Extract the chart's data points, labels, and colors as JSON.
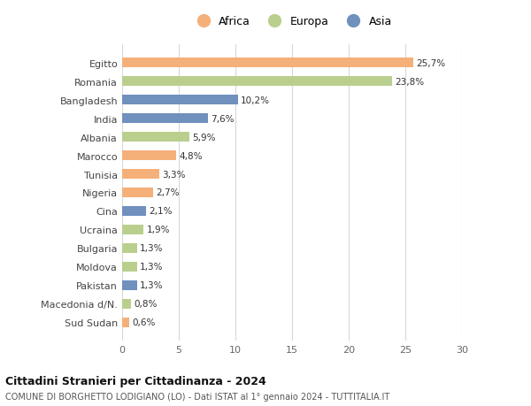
{
  "countries": [
    "Egitto",
    "Romania",
    "Bangladesh",
    "India",
    "Albania",
    "Marocco",
    "Tunisia",
    "Nigeria",
    "Cina",
    "Ucraina",
    "Bulgaria",
    "Moldova",
    "Pakistan",
    "Macedonia d/N.",
    "Sud Sudan"
  ],
  "values": [
    25.7,
    23.8,
    10.2,
    7.6,
    5.9,
    4.8,
    3.3,
    2.7,
    2.1,
    1.9,
    1.3,
    1.3,
    1.3,
    0.8,
    0.6
  ],
  "labels": [
    "25,7%",
    "23,8%",
    "10,2%",
    "7,6%",
    "5,9%",
    "4,8%",
    "3,3%",
    "2,7%",
    "2,1%",
    "1,9%",
    "1,3%",
    "1,3%",
    "1,3%",
    "0,8%",
    "0,6%"
  ],
  "continents": [
    "Africa",
    "Europa",
    "Asia",
    "Asia",
    "Europa",
    "Africa",
    "Africa",
    "Africa",
    "Asia",
    "Europa",
    "Europa",
    "Europa",
    "Asia",
    "Europa",
    "Africa"
  ],
  "colors": {
    "Africa": "#F5B07A",
    "Europa": "#BACF8E",
    "Asia": "#7090BE"
  },
  "xlim": [
    0,
    30
  ],
  "xticks": [
    0,
    5,
    10,
    15,
    20,
    25,
    30
  ],
  "title1": "Cittadini Stranieri per Cittadinanza - 2024",
  "title2": "COMUNE DI BORGHETTO LODIGIANO (LO) - Dati ISTAT al 1° gennaio 2024 - TUTTITALIA.IT",
  "bg_color": "#ffffff",
  "grid_color": "#d8d8d8",
  "bar_height": 0.55,
  "label_fontsize": 7.5,
  "ytick_fontsize": 8,
  "xtick_fontsize": 8
}
